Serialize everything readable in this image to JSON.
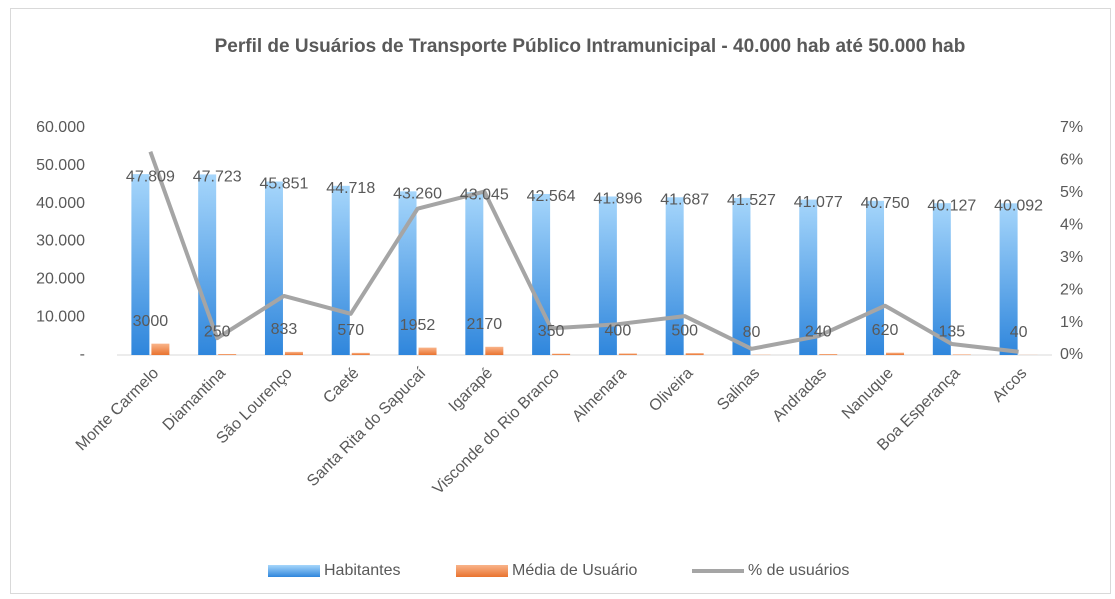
{
  "chart_data": {
    "type": "bar_line",
    "title": "Perfil de Usuários de Transporte Público Intramunicipal - 40.000 hab até 50.000 hab",
    "categories": [
      "Monte Carmelo",
      "Diamantina",
      "São Lourenço",
      "Caeté",
      "Santa Rita do Sapucaí",
      "Igarapé",
      "Visconde do Rio Branco",
      "Almenara",
      "Oliveira",
      "Salinas",
      "Andradas",
      "Nanuque",
      "Boa Esperança",
      "Arcos"
    ],
    "series": [
      {
        "name": "Habitantes",
        "type": "bar",
        "color": "#3d93e6",
        "values": [
          47809,
          47723,
          45851,
          44718,
          43260,
          43045,
          42564,
          41896,
          41687,
          41527,
          41077,
          40750,
          40127,
          40092
        ],
        "value_labels": [
          "47.809",
          "47.723",
          "45.851",
          "44.718",
          "43.260",
          "43.045",
          "42.564",
          "41.896",
          "41.687",
          "41.527",
          "41.077",
          "40.750",
          "40.127",
          "40.092"
        ]
      },
      {
        "name": "Média de Usuário",
        "type": "bar",
        "color": "#ee7f3e",
        "values": [
          3000,
          250,
          833,
          570,
          1952,
          2170,
          350,
          400,
          500,
          80,
          240,
          620,
          135,
          40
        ]
      },
      {
        "name": "% de usuários",
        "type": "line",
        "axis": "y2",
        "color": "#a5a5a5",
        "values": [
          6.27,
          0.52,
          1.82,
          1.27,
          4.51,
          5.04,
          0.82,
          0.95,
          1.2,
          0.19,
          0.58,
          1.52,
          0.34,
          0.1
        ]
      }
    ],
    "ylim": [
      0,
      60000
    ],
    "yticks": [
      {
        "value": 0,
        "label": "-"
      },
      {
        "value": 10000,
        "label": "10.000"
      },
      {
        "value": 20000,
        "label": "20.000"
      },
      {
        "value": 30000,
        "label": "30.000"
      },
      {
        "value": 40000,
        "label": "40.000"
      },
      {
        "value": 50000,
        "label": "50.000"
      },
      {
        "value": 60000,
        "label": "60.000"
      }
    ],
    "y2lim": [
      0,
      7
    ],
    "y2ticks": [
      {
        "value": 0,
        "label": "0%"
      },
      {
        "value": 1,
        "label": "1%"
      },
      {
        "value": 2,
        "label": "2%"
      },
      {
        "value": 3,
        "label": "3%"
      },
      {
        "value": 4,
        "label": "4%"
      },
      {
        "value": 5,
        "label": "5%"
      },
      {
        "value": 6,
        "label": "6%"
      },
      {
        "value": 7,
        "label": "7%"
      }
    ],
    "legend": "bottom"
  }
}
